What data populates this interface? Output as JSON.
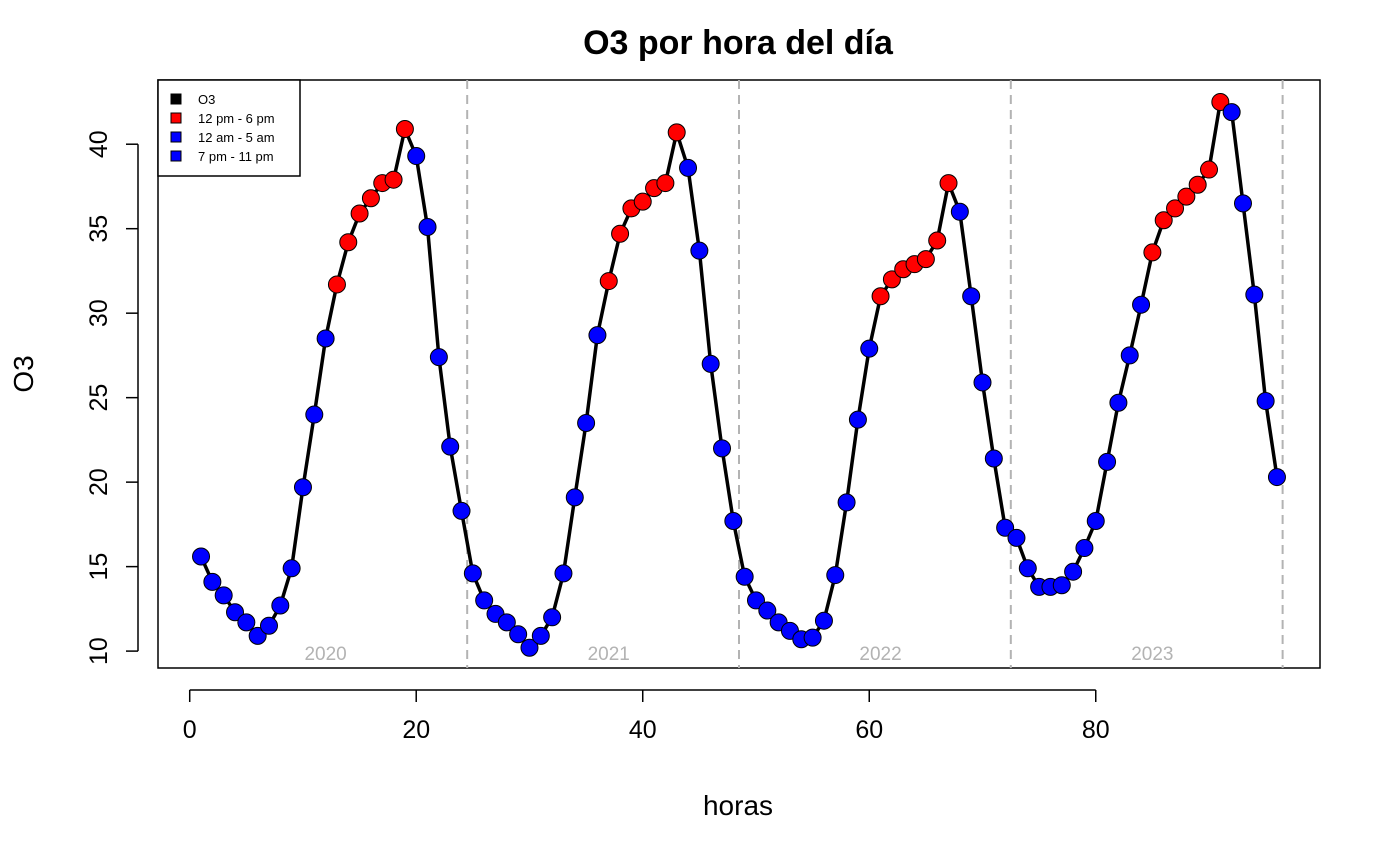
{
  "chart_data": {
    "type": "line",
    "title": "O3 por hora del día",
    "xlabel": "horas",
    "ylabel": "O3",
    "xlim": [
      -2.8,
      99.8
    ],
    "ylim": [
      9.0,
      43.8
    ],
    "xticks": [
      0,
      20,
      40,
      60,
      80
    ],
    "yticks": [
      10,
      15,
      20,
      25,
      30,
      35,
      40
    ],
    "grid": false,
    "legend_position": "top-left",
    "legend": [
      {
        "label": "O3",
        "color": "#000000"
      },
      {
        "label": "12 pm - 6 pm",
        "color": "#ff0000"
      },
      {
        "label": "12 am - 5 am",
        "color": "#0000ff"
      },
      {
        "label": "7 pm - 11 pm",
        "color": "#0000ff"
      }
    ],
    "year_separators": [
      24.5,
      48.5,
      72.5,
      96.5
    ],
    "year_labels": [
      {
        "x": 12,
        "text": "2020"
      },
      {
        "x": 37,
        "text": "2021"
      },
      {
        "x": 61,
        "text": "2022"
      },
      {
        "x": 85,
        "text": "2023"
      }
    ],
    "colors": {
      "midday": "#ff0000",
      "other": "#0000ff",
      "line": "#000000",
      "separator": "#b3b3b3"
    },
    "series": [
      {
        "name": "O3",
        "x": [
          1,
          2,
          3,
          4,
          5,
          6,
          7,
          8,
          9,
          10,
          11,
          12,
          13,
          14,
          15,
          16,
          17,
          18,
          19,
          20,
          21,
          22,
          23,
          24,
          25,
          26,
          27,
          28,
          29,
          30,
          31,
          32,
          33,
          34,
          35,
          36,
          37,
          38,
          39,
          40,
          41,
          42,
          43,
          44,
          45,
          46,
          47,
          48,
          49,
          50,
          51,
          52,
          53,
          54,
          55,
          56,
          57,
          58,
          59,
          60,
          61,
          62,
          63,
          64,
          65,
          66,
          67,
          68,
          69,
          70,
          71,
          72,
          73,
          74,
          75,
          76,
          77,
          78,
          79,
          80,
          81,
          82,
          83,
          84,
          85,
          86,
          87,
          88,
          89,
          90,
          91,
          92,
          93,
          94,
          95,
          96
        ],
        "y": [
          15.6,
          14.1,
          13.3,
          12.3,
          11.7,
          10.9,
          11.5,
          12.7,
          14.9,
          19.7,
          24.0,
          28.5,
          31.7,
          34.2,
          35.9,
          36.8,
          37.7,
          37.9,
          40.9,
          39.3,
          35.1,
          27.4,
          22.1,
          18.3,
          14.6,
          13.0,
          12.2,
          11.7,
          11.0,
          10.2,
          10.9,
          12.0,
          14.6,
          19.1,
          23.5,
          28.7,
          31.9,
          34.7,
          36.2,
          36.6,
          37.4,
          37.7,
          40.7,
          38.6,
          33.7,
          27.0,
          22.0,
          17.7,
          14.4,
          13.0,
          12.4,
          11.7,
          11.2,
          10.7,
          10.8,
          11.8,
          14.5,
          18.8,
          23.7,
          27.9,
          31.0,
          32.0,
          32.6,
          32.9,
          33.2,
          34.3,
          37.7,
          36.0,
          31.0,
          25.9,
          21.4,
          17.3,
          16.7,
          14.9,
          13.8,
          13.8,
          13.9,
          14.7,
          16.1,
          17.7,
          21.2,
          24.7,
          27.5,
          30.5,
          33.6,
          35.5,
          36.2,
          36.9,
          37.6,
          38.5,
          42.5,
          41.9,
          36.5,
          31.1,
          24.8,
          20.3
        ],
        "midday_points_x": [
          13,
          14,
          15,
          16,
          17,
          18,
          19,
          37,
          38,
          39,
          40,
          41,
          42,
          43,
          61,
          62,
          63,
          64,
          65,
          66,
          67,
          85,
          86,
          87,
          88,
          89,
          90,
          91
        ]
      }
    ]
  }
}
